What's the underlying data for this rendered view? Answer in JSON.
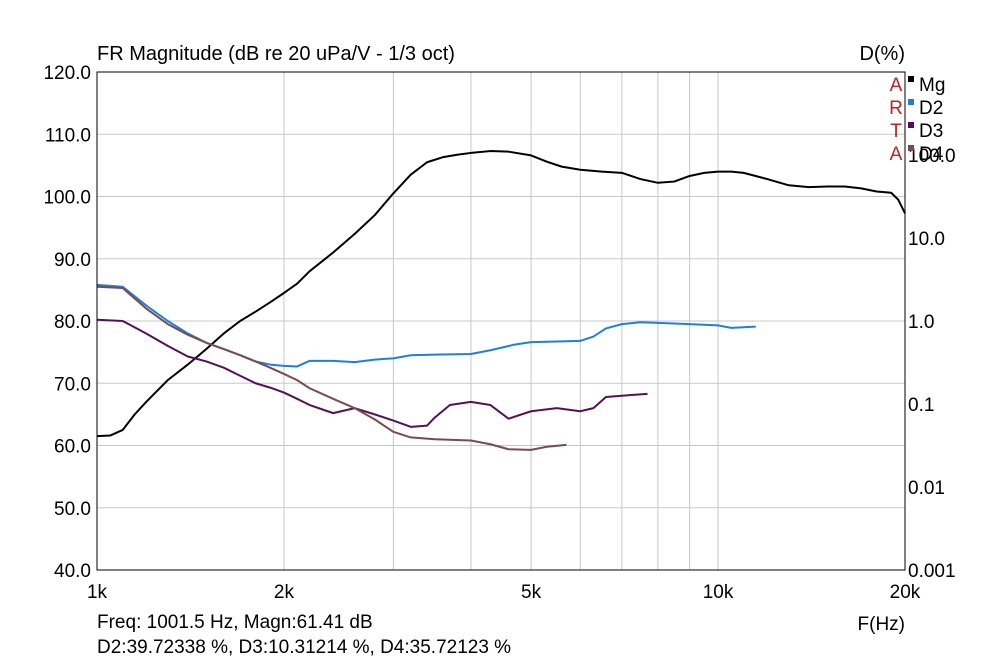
{
  "chart_data": {
    "type": "line",
    "title": "FR Magnitude (dB re 20 uPa/V - 1/3 oct)",
    "right_axis_title": "D(%)",
    "xlabel": "F(Hz)",
    "x_scale": "log",
    "xlim": [
      1000,
      20000
    ],
    "ylim": [
      40,
      120
    ],
    "y_right_scale": "log",
    "y_right_lim": [
      0.001,
      1000
    ],
    "x_ticks": [
      1000,
      2000,
      5000,
      10000,
      20000
    ],
    "x_tick_labels": [
      "1k",
      "2k",
      "5k",
      "10k",
      "20k"
    ],
    "y_ticks": [
      40,
      50,
      60,
      70,
      80,
      90,
      100,
      110,
      120
    ],
    "y_tick_labels": [
      "40.0",
      "50.0",
      "60.0",
      "70.0",
      "80.0",
      "90.0",
      "100.0",
      "110.0",
      "120.0"
    ],
    "y_right_ticks": [
      0.001,
      0.01,
      0.1,
      1,
      10,
      100
    ],
    "y_right_tick_labels": [
      "0.001",
      "0.01",
      "0.1",
      "1.0",
      "10.0",
      "100.0"
    ],
    "grid": true,
    "legend_placement": "top-right",
    "watermark_letters": [
      "A",
      "R",
      "T",
      "A"
    ],
    "series": [
      {
        "name": "Mg",
        "color": "#000000",
        "points": [
          [
            1000,
            61.5
          ],
          [
            1050,
            61.6
          ],
          [
            1100,
            62.5
          ],
          [
            1150,
            65
          ],
          [
            1200,
            67
          ],
          [
            1300,
            70.5
          ],
          [
            1400,
            73
          ],
          [
            1500,
            75.5
          ],
          [
            1600,
            78
          ],
          [
            1700,
            80
          ],
          [
            1800,
            81.5
          ],
          [
            1900,
            83
          ],
          [
            2000,
            84.5
          ],
          [
            2100,
            86
          ],
          [
            2200,
            88
          ],
          [
            2400,
            91
          ],
          [
            2600,
            94
          ],
          [
            2800,
            97
          ],
          [
            3000,
            100.5
          ],
          [
            3200,
            103.5
          ],
          [
            3400,
            105.5
          ],
          [
            3600,
            106.3
          ],
          [
            3800,
            106.7
          ],
          [
            4000,
            107
          ],
          [
            4300,
            107.3
          ],
          [
            4600,
            107.2
          ],
          [
            5000,
            106.6
          ],
          [
            5300,
            105.6
          ],
          [
            5600,
            104.8
          ],
          [
            6000,
            104.3
          ],
          [
            6500,
            104
          ],
          [
            7000,
            103.8
          ],
          [
            7500,
            102.8
          ],
          [
            8000,
            102.2
          ],
          [
            8500,
            102.4
          ],
          [
            9000,
            103.3
          ],
          [
            9500,
            103.8
          ],
          [
            10000,
            104
          ],
          [
            10500,
            104
          ],
          [
            11000,
            103.8
          ],
          [
            12000,
            102.8
          ],
          [
            13000,
            101.8
          ],
          [
            14000,
            101.5
          ],
          [
            15000,
            101.6
          ],
          [
            16000,
            101.6
          ],
          [
            17000,
            101.3
          ],
          [
            18000,
            100.8
          ],
          [
            19000,
            100.6
          ],
          [
            19500,
            99.5
          ],
          [
            20000,
            97.3
          ]
        ]
      },
      {
        "name": "D2",
        "color": "#1e7fe0",
        "points": [
          [
            1000,
            85.8
          ],
          [
            1100,
            85.5
          ],
          [
            1200,
            82.5
          ],
          [
            1300,
            80
          ],
          [
            1400,
            78
          ],
          [
            1500,
            76.5
          ],
          [
            1600,
            75.5
          ],
          [
            1700,
            74.5
          ],
          [
            1800,
            73.5
          ],
          [
            1900,
            73
          ],
          [
            2000,
            72.8
          ],
          [
            2100,
            72.7
          ],
          [
            2200,
            73.6
          ],
          [
            2400,
            73.6
          ],
          [
            2600,
            73.4
          ],
          [
            2800,
            73.8
          ],
          [
            3000,
            74
          ],
          [
            3200,
            74.5
          ],
          [
            3500,
            74.6
          ],
          [
            4000,
            74.7
          ],
          [
            4300,
            75.3
          ],
          [
            4700,
            76.2
          ],
          [
            5000,
            76.6
          ],
          [
            5500,
            76.7
          ],
          [
            6000,
            76.8
          ],
          [
            6300,
            77.5
          ],
          [
            6600,
            78.8
          ],
          [
            7000,
            79.5
          ],
          [
            7500,
            79.8
          ],
          [
            8000,
            79.7
          ],
          [
            9000,
            79.5
          ],
          [
            10000,
            79.3
          ],
          [
            10500,
            78.9
          ],
          [
            11500,
            79.1
          ]
        ]
      },
      {
        "name": "D3",
        "color": "#55105a",
        "points": [
          [
            1000,
            80.2
          ],
          [
            1100,
            80
          ],
          [
            1200,
            78
          ],
          [
            1300,
            76
          ],
          [
            1400,
            74.3
          ],
          [
            1500,
            73.5
          ],
          [
            1600,
            72.5
          ],
          [
            1700,
            71.2
          ],
          [
            1800,
            70
          ],
          [
            1900,
            69.3
          ],
          [
            2000,
            68.5
          ],
          [
            2100,
            67.5
          ],
          [
            2200,
            66.5
          ],
          [
            2400,
            65.2
          ],
          [
            2600,
            66
          ],
          [
            2800,
            65
          ],
          [
            3000,
            64
          ],
          [
            3200,
            63
          ],
          [
            3400,
            63.2
          ],
          [
            3500,
            64.5
          ],
          [
            3700,
            66.5
          ],
          [
            4000,
            67
          ],
          [
            4300,
            66.5
          ],
          [
            4600,
            64.3
          ],
          [
            5000,
            65.5
          ],
          [
            5500,
            66
          ],
          [
            6000,
            65.5
          ],
          [
            6300,
            66
          ],
          [
            6600,
            67.8
          ],
          [
            7000,
            68
          ],
          [
            7700,
            68.3
          ]
        ]
      },
      {
        "name": "D4",
        "color": "#7a4b4b",
        "points": [
          [
            1000,
            85.5
          ],
          [
            1100,
            85.3
          ],
          [
            1200,
            82
          ],
          [
            1300,
            79.5
          ],
          [
            1400,
            77.8
          ],
          [
            1500,
            76.5
          ],
          [
            1600,
            75.5
          ],
          [
            1700,
            74.5
          ],
          [
            1800,
            73.5
          ],
          [
            1900,
            72.5
          ],
          [
            2000,
            71.5
          ],
          [
            2100,
            70.5
          ],
          [
            2200,
            69.2
          ],
          [
            2400,
            67.5
          ],
          [
            2600,
            66
          ],
          [
            2800,
            64.2
          ],
          [
            3000,
            62.2
          ],
          [
            3200,
            61.3
          ],
          [
            3500,
            61
          ],
          [
            4000,
            60.8
          ],
          [
            4300,
            60.2
          ],
          [
            4600,
            59.4
          ],
          [
            5000,
            59.3
          ],
          [
            5300,
            59.8
          ],
          [
            5700,
            60.1
          ]
        ]
      }
    ]
  },
  "readout": {
    "line1": "Freq: 1001.5 Hz, Magn:61.41 dB",
    "line2": "D2:39.72338 %, D3:10.31214 %, D4:35.72123 %"
  }
}
